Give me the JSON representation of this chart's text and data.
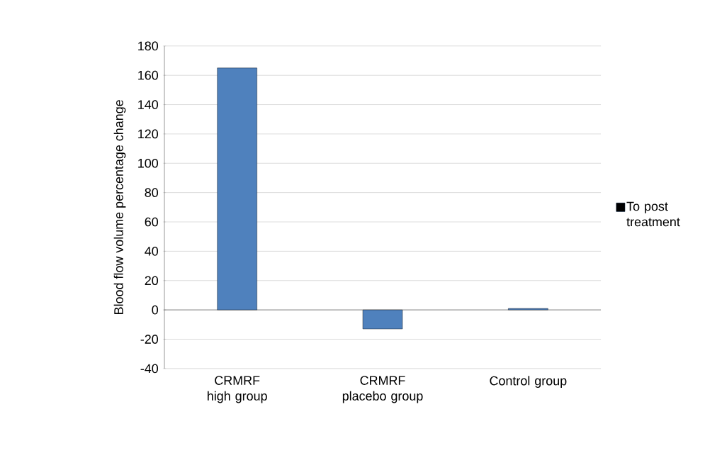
{
  "chart_data": {
    "type": "bar",
    "ylabel": "Blood flow volume percentage change",
    "categories": [
      "CRMRF high group",
      "CRMRF placebo group",
      "Control group"
    ],
    "series": [
      {
        "name": "To post treatment",
        "color": "#4f81bd",
        "values": [
          165,
          -13,
          1
        ]
      }
    ],
    "ylim": [
      -40,
      180
    ],
    "yticks": [
      -40,
      -20,
      0,
      20,
      40,
      60,
      80,
      100,
      120,
      140,
      160,
      180
    ],
    "grid": "y",
    "legend": "right"
  }
}
